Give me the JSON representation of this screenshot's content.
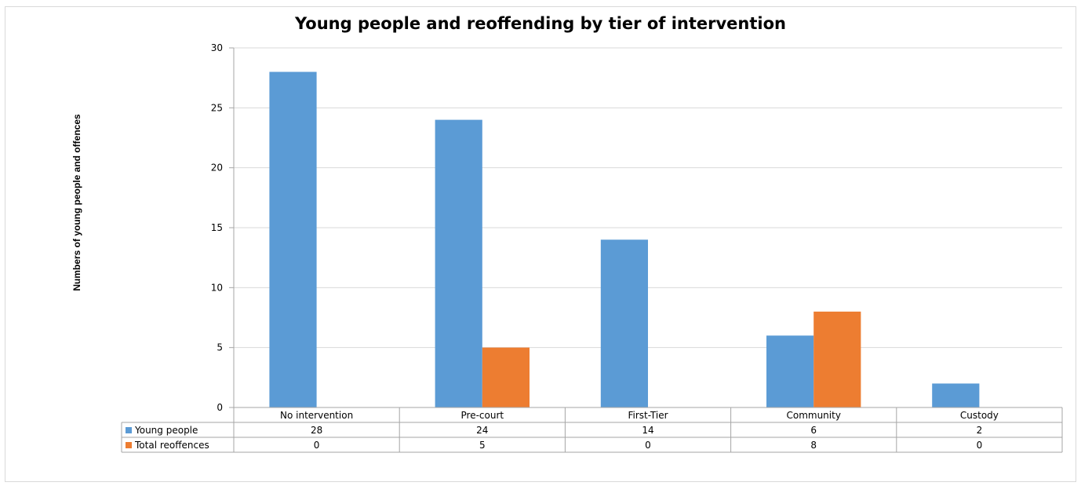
{
  "chart_data": {
    "type": "bar",
    "title": "Young people and reoffending by tier of intervention",
    "xlabel": "",
    "ylabel": "Numbers of young people and offences",
    "ylim": [
      0,
      30
    ],
    "yticks": [
      0,
      5,
      10,
      15,
      20,
      25,
      30
    ],
    "grid": true,
    "legend": "data-table",
    "categories": [
      "No intervention",
      "Pre-court",
      "First-Tier",
      "Community",
      "Custody"
    ],
    "series": [
      {
        "name": "Young people",
        "values": [
          28,
          24,
          14,
          6,
          2
        ],
        "color": "#5B9BD5"
      },
      {
        "name": "Total reoffences",
        "values": [
          0,
          5,
          0,
          8,
          0
        ],
        "color": "#ED7D31"
      }
    ]
  }
}
